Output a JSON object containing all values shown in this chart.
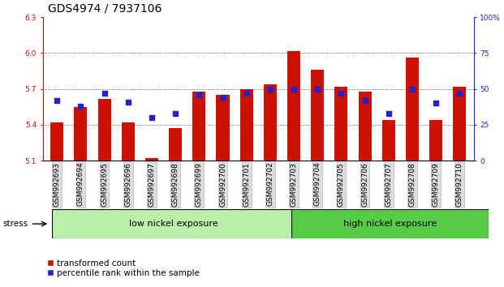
{
  "title": "GDS4974 / 7937106",
  "categories": [
    "GSM992693",
    "GSM992694",
    "GSM992695",
    "GSM992696",
    "GSM992697",
    "GSM992698",
    "GSM992699",
    "GSM992700",
    "GSM992701",
    "GSM992702",
    "GSM992703",
    "GSM992704",
    "GSM992705",
    "GSM992706",
    "GSM992707",
    "GSM992708",
    "GSM992709",
    "GSM992710"
  ],
  "red_values": [
    5.42,
    5.55,
    5.62,
    5.42,
    5.12,
    5.37,
    5.68,
    5.65,
    5.7,
    5.74,
    6.02,
    5.86,
    5.72,
    5.68,
    5.44,
    5.96,
    5.44,
    5.72
  ],
  "blue_values": [
    42,
    38,
    47,
    41,
    30,
    33,
    46,
    44,
    47,
    50,
    50,
    50,
    47,
    42,
    33,
    50,
    40,
    47
  ],
  "ymin": 5.1,
  "ymax": 6.3,
  "yticks_red": [
    5.1,
    5.4,
    5.7,
    6.0,
    6.3
  ],
  "yticks_blue": [
    0,
    25,
    50,
    75,
    100
  ],
  "group1_label": "low nickel exposure",
  "group1_count": 10,
  "group2_label": "high nickel exposure",
  "group2_count": 8,
  "stress_label": "stress",
  "legend_red": "transformed count",
  "legend_blue": "percentile rank within the sample",
  "bar_color": "#cc1100",
  "blue_color": "#2222cc",
  "group1_bg": "#bbeeaa",
  "group2_bg": "#55cc44",
  "tick_bg": "#dddddd",
  "title_fontsize": 10,
  "tick_fontsize": 6.5,
  "legend_fontsize": 7.5,
  "group_fontsize": 8,
  "stress_fontsize": 7.5
}
